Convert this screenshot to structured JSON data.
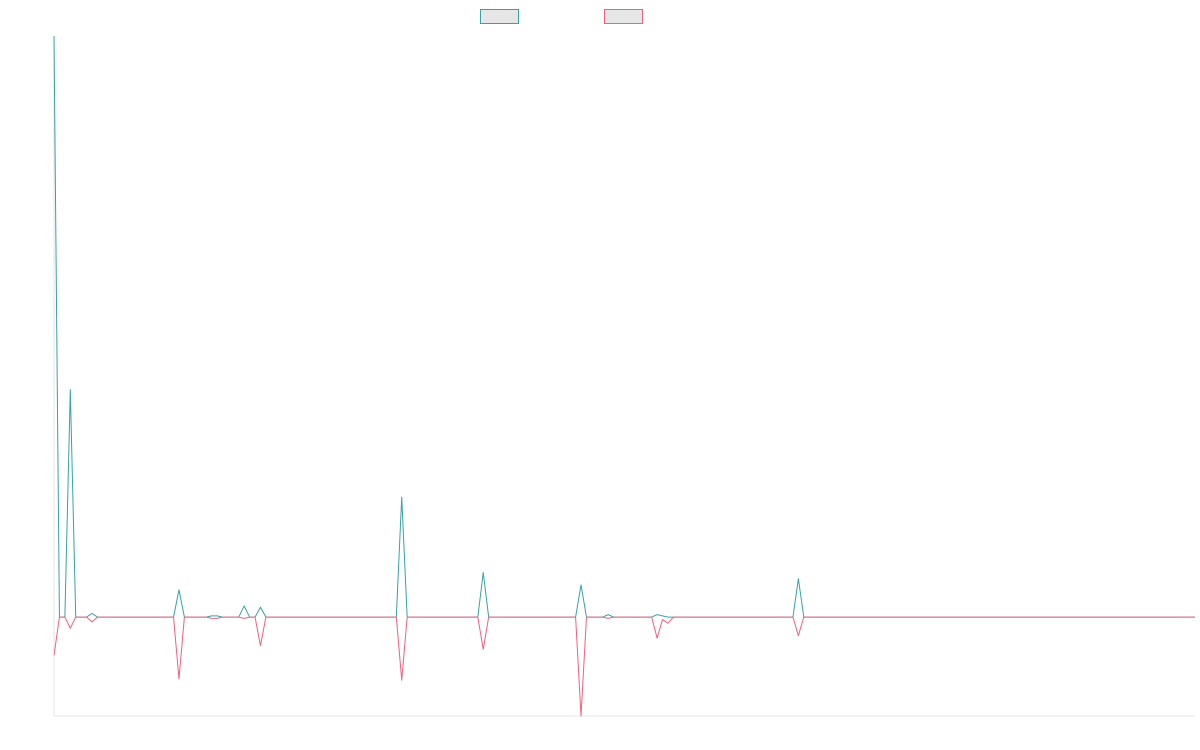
{
  "chart_data": {
    "type": "line",
    "title": "",
    "xlabel": "",
    "ylabel": "",
    "grid": false,
    "axes_labels_visible": false,
    "legend_position": "top-center",
    "ylim": [
      -80,
      470
    ],
    "baseline": 0,
    "x_count": 210,
    "series": [
      {
        "name": "",
        "color": "#36a2a6",
        "points": [
          [
            0,
            470
          ],
          [
            1,
            0
          ],
          [
            2,
            0
          ],
          [
            3,
            184
          ],
          [
            4,
            0
          ],
          [
            5,
            0
          ],
          [
            6,
            0
          ],
          [
            7,
            3
          ],
          [
            8,
            0
          ],
          [
            9,
            0
          ],
          [
            22,
            0
          ],
          [
            23,
            22
          ],
          [
            24,
            0
          ],
          [
            28,
            0
          ],
          [
            29,
            1
          ],
          [
            30,
            1
          ],
          [
            31,
            0
          ],
          [
            34,
            0
          ],
          [
            35,
            9
          ],
          [
            36,
            0
          ],
          [
            37,
            0
          ],
          [
            38,
            8
          ],
          [
            39,
            0
          ],
          [
            63,
            0
          ],
          [
            64,
            97
          ],
          [
            65,
            0
          ],
          [
            78,
            0
          ],
          [
            79,
            36
          ],
          [
            80,
            0
          ],
          [
            96,
            0
          ],
          [
            97,
            26
          ],
          [
            98,
            0
          ],
          [
            101,
            0
          ],
          [
            102,
            2
          ],
          [
            103,
            0
          ],
          [
            110,
            0
          ],
          [
            111,
            2
          ],
          [
            112,
            1
          ],
          [
            113,
            0
          ],
          [
            136,
            0
          ],
          [
            137,
            31
          ],
          [
            138,
            0
          ],
          [
            210,
            0
          ]
        ]
      },
      {
        "name": "",
        "color": "#f0607f",
        "points": [
          [
            0,
            -31
          ],
          [
            1,
            0
          ],
          [
            2,
            0
          ],
          [
            3,
            -9
          ],
          [
            4,
            0
          ],
          [
            5,
            0
          ],
          [
            6,
            0
          ],
          [
            7,
            -4
          ],
          [
            8,
            0
          ],
          [
            9,
            0
          ],
          [
            22,
            0
          ],
          [
            23,
            -50
          ],
          [
            24,
            0
          ],
          [
            28,
            0
          ],
          [
            29,
            -1
          ],
          [
            30,
            -1
          ],
          [
            31,
            0
          ],
          [
            34,
            0
          ],
          [
            35,
            -1
          ],
          [
            36,
            0
          ],
          [
            37,
            0
          ],
          [
            38,
            -23
          ],
          [
            39,
            0
          ],
          [
            63,
            0
          ],
          [
            64,
            -51
          ],
          [
            65,
            0
          ],
          [
            78,
            0
          ],
          [
            79,
            -26
          ],
          [
            80,
            0
          ],
          [
            96,
            0
          ],
          [
            97,
            -80
          ],
          [
            98,
            0
          ],
          [
            101,
            0
          ],
          [
            102,
            -1
          ],
          [
            103,
            0
          ],
          [
            110,
            0
          ],
          [
            111,
            -17
          ],
          [
            112,
            -2
          ],
          [
            113,
            -5
          ],
          [
            114,
            0
          ],
          [
            136,
            0
          ],
          [
            137,
            -15
          ],
          [
            138,
            0
          ],
          [
            210,
            0
          ]
        ]
      }
    ]
  }
}
